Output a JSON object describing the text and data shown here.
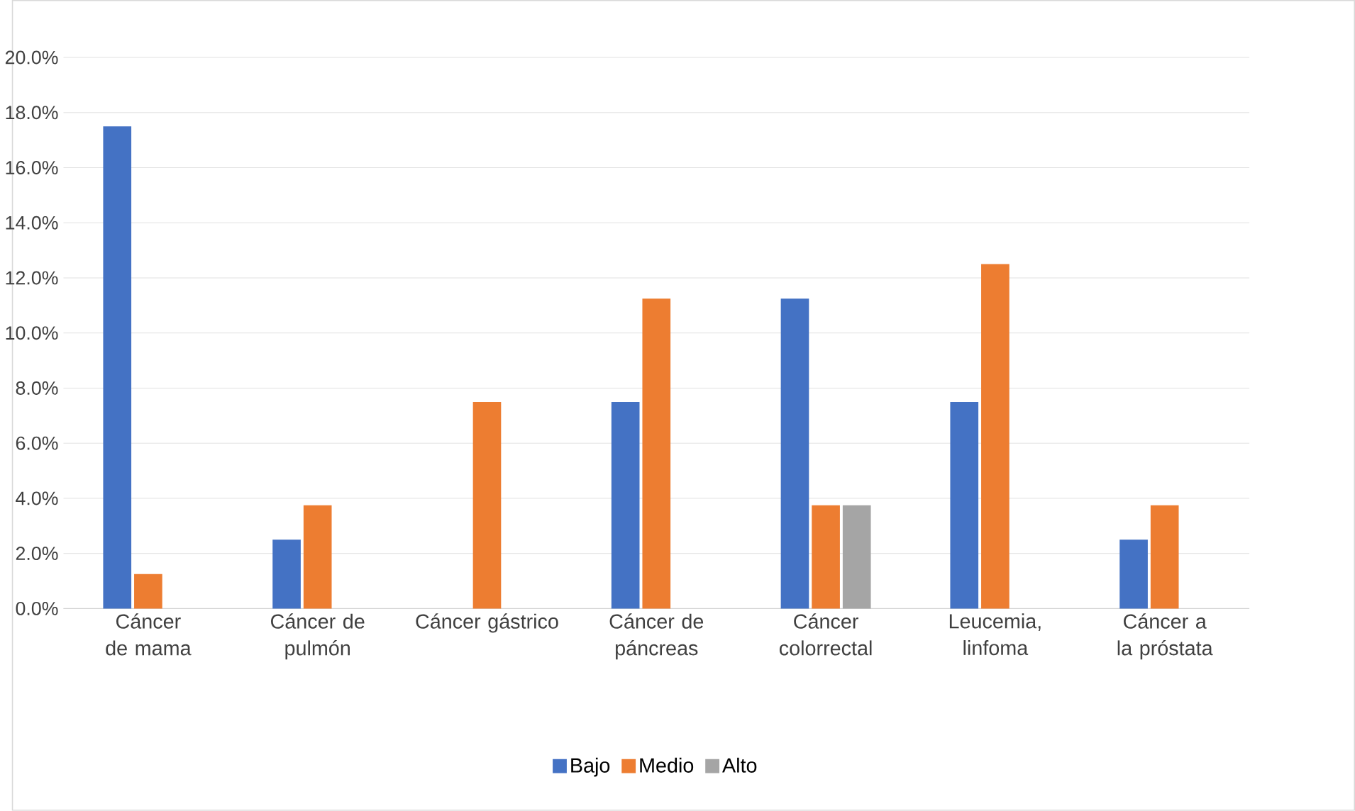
{
  "chart_data": {
    "type": "bar",
    "categories": [
      "Cáncer de mama",
      "Cáncer de pulmón",
      "Cáncer gástrico",
      "Cáncer de páncreas",
      "Cáncer colorrectal",
      "Leucemia, linfoma",
      "Cáncer a la próstata"
    ],
    "series": [
      {
        "name": "Bajo",
        "color": "#4472c4",
        "values": [
          17.5,
          2.5,
          0,
          7.5,
          11.25,
          7.5,
          2.5
        ]
      },
      {
        "name": "Medio",
        "color": "#ed7d31",
        "values": [
          1.25,
          3.75,
          7.5,
          11.25,
          3.75,
          12.5,
          3.75
        ]
      },
      {
        "name": "Alto",
        "color": "#a5a5a5",
        "values": [
          0,
          0,
          0,
          0,
          3.75,
          0,
          0
        ]
      }
    ],
    "ylim": [
      0,
      20
    ],
    "yticks": [
      {
        "value": 0,
        "label": "0.0%"
      },
      {
        "value": 2,
        "label": "2.0%"
      },
      {
        "value": 4,
        "label": "4.0%"
      },
      {
        "value": 6,
        "label": "6.0%"
      },
      {
        "value": 8,
        "label": "8.0%"
      },
      {
        "value": 10,
        "label": "10.0%"
      },
      {
        "value": 12,
        "label": "12.0%"
      },
      {
        "value": 14,
        "label": "14.0%"
      },
      {
        "value": 16,
        "label": "16.0%"
      },
      {
        "value": 18,
        "label": "18.0%"
      },
      {
        "value": 20,
        "label": "20.0%"
      }
    ],
    "grid": "y",
    "legend": "bottom"
  }
}
